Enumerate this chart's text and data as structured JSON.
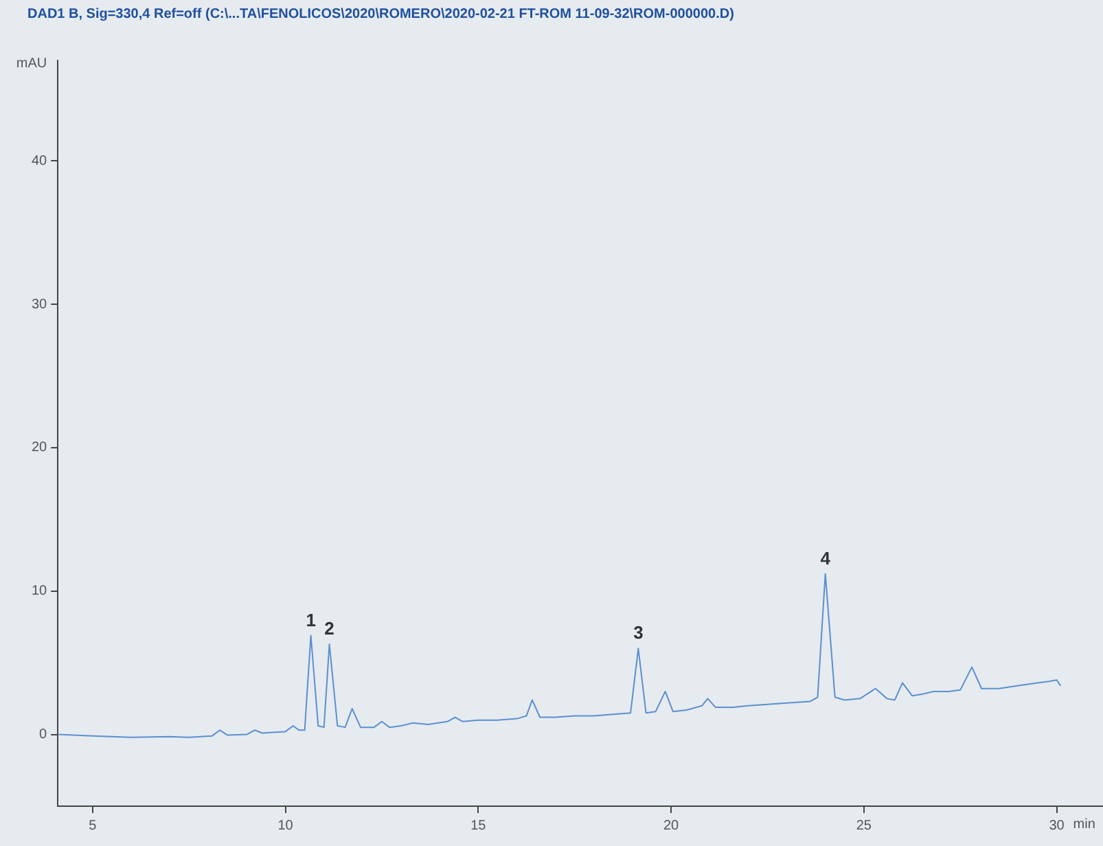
{
  "chart_data": {
    "type": "line",
    "title": "DAD1 B, Sig=330,4 Ref=off (C:\\...TA\\FENOLICOS\\2020\\ROMERO\\2020-02-21 FT-ROM 11-09-32\\ROM-000000.D)",
    "xlabel": "min",
    "ylabel": "mAU",
    "xlim": [
      4.1,
      31.2
    ],
    "xticks": [
      5,
      10,
      15,
      20,
      25,
      30
    ],
    "ylim": [
      -5,
      47
    ],
    "yticks": [
      0,
      10,
      20,
      30,
      40
    ],
    "grid": false,
    "legend": false,
    "marker": "none",
    "line_style": "solid",
    "annotations": [
      {
        "text": "1",
        "x": 10.66,
        "y": 6.9
      },
      {
        "text": "2",
        "x": 11.14,
        "y": 6.3
      },
      {
        "text": "3",
        "x": 19.15,
        "y": 6.0
      },
      {
        "text": "4",
        "x": 24.0,
        "y": 11.2
      }
    ],
    "series": [
      {
        "color": "#5b8fd0",
        "x": [
          4.1,
          5,
          6,
          7,
          7.5,
          8.1,
          8.3,
          8.5,
          9.0,
          9.2,
          9.4,
          10.0,
          10.2,
          10.35,
          10.5,
          10.66,
          10.85,
          11.0,
          11.14,
          11.35,
          11.55,
          11.73,
          11.95,
          12.3,
          12.5,
          12.7,
          13.0,
          13.3,
          13.7,
          14.2,
          14.4,
          14.6,
          15.0,
          15.5,
          16.0,
          16.25,
          16.4,
          16.6,
          17.0,
          17.5,
          18.0,
          18.5,
          18.95,
          19.15,
          19.35,
          19.6,
          19.85,
          20.05,
          20.4,
          20.8,
          20.95,
          21.15,
          21.6,
          22.0,
          22.5,
          23.0,
          23.6,
          23.8,
          24.0,
          24.25,
          24.5,
          24.9,
          25.3,
          25.6,
          25.8,
          26.0,
          26.25,
          26.5,
          26.8,
          27.2,
          27.5,
          27.8,
          28.05,
          28.5,
          29.0,
          29.5,
          29.8,
          30.0,
          30.1
        ],
        "values": [
          0,
          -0.1,
          -0.2,
          -0.15,
          -0.2,
          -0.1,
          0.3,
          -0.05,
          0.0,
          0.3,
          0.1,
          0.2,
          0.6,
          0.3,
          0.3,
          6.9,
          0.6,
          0.5,
          6.3,
          0.6,
          0.5,
          1.8,
          0.5,
          0.5,
          0.9,
          0.5,
          0.6,
          0.8,
          0.7,
          0.9,
          1.2,
          0.9,
          1.0,
          1.0,
          1.1,
          1.3,
          2.4,
          1.2,
          1.2,
          1.3,
          1.3,
          1.4,
          1.5,
          6.0,
          1.5,
          1.6,
          3.0,
          1.6,
          1.7,
          2.0,
          2.5,
          1.9,
          1.9,
          2.0,
          2.1,
          2.2,
          2.3,
          2.6,
          11.2,
          2.6,
          2.4,
          2.5,
          3.2,
          2.5,
          2.4,
          3.6,
          2.7,
          2.8,
          3.0,
          3.0,
          3.1,
          4.7,
          3.2,
          3.2,
          3.4,
          3.6,
          3.7,
          3.8,
          3.4
        ]
      }
    ]
  }
}
